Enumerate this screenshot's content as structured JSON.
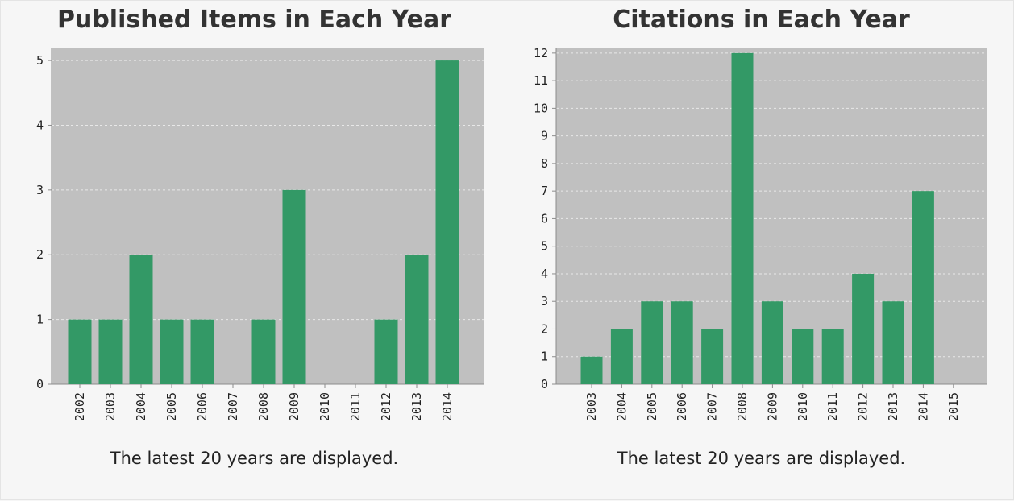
{
  "colors": {
    "bar": "#339966",
    "plot_bg": "#c0c0c0",
    "grid": "#e8e8e8",
    "axis": "#8c8c8c"
  },
  "chart_data": [
    {
      "type": "bar",
      "title": "Published Items in Each Year",
      "categories": [
        "2002",
        "2003",
        "2004",
        "2005",
        "2006",
        "2007",
        "2008",
        "2009",
        "2010",
        "2011",
        "2012",
        "2013",
        "2014"
      ],
      "values": [
        1,
        1,
        2,
        1,
        1,
        0,
        1,
        3,
        0,
        0,
        1,
        2,
        5
      ],
      "ylim": [
        0,
        5.2
      ],
      "yticks": [
        0,
        1,
        2,
        3,
        4,
        5
      ],
      "grid": true,
      "note": "The latest 20 years are displayed."
    },
    {
      "type": "bar",
      "title": "Citations in Each Year",
      "categories": [
        "2003",
        "2004",
        "2005",
        "2006",
        "2007",
        "2008",
        "2009",
        "2010",
        "2011",
        "2012",
        "2013",
        "2014",
        "2015"
      ],
      "values": [
        1,
        2,
        3,
        3,
        2,
        12,
        3,
        2,
        2,
        4,
        3,
        7,
        0
      ],
      "ylim": [
        0,
        12.2
      ],
      "yticks": [
        0,
        1,
        2,
        3,
        4,
        5,
        6,
        7,
        8,
        9,
        10,
        11,
        12
      ],
      "grid": true,
      "note": "The latest 20 years are displayed."
    }
  ]
}
